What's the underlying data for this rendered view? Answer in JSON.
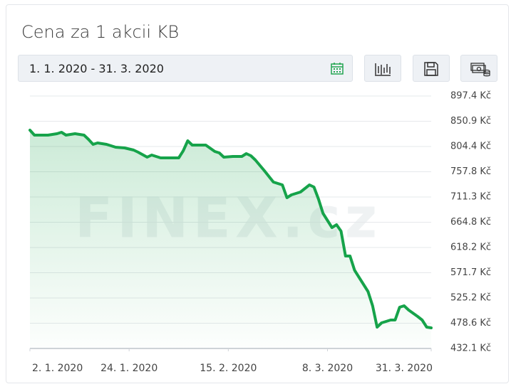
{
  "chart_data": {
    "type": "line",
    "title": "Cena za 1 akcii KB",
    "date_range": "1. 1. 2020 - 31. 3. 2020",
    "watermark": "FINEX.cz",
    "x": [
      "2020-01-02",
      "2020-01-03",
      "2020-01-05",
      "2020-01-06",
      "2020-01-08",
      "2020-01-09",
      "2020-01-10",
      "2020-01-12",
      "2020-01-14",
      "2020-01-15",
      "2020-01-16",
      "2020-01-17",
      "2020-01-19",
      "2020-01-21",
      "2020-01-23",
      "2020-01-25",
      "2020-01-26",
      "2020-01-28",
      "2020-01-29",
      "2020-01-31",
      "2020-02-02",
      "2020-02-04",
      "2020-02-05",
      "2020-02-06",
      "2020-02-07",
      "2020-02-09",
      "2020-02-10",
      "2020-02-12",
      "2020-02-13",
      "2020-02-14",
      "2020-02-16",
      "2020-02-18",
      "2020-02-19",
      "2020-02-20",
      "2020-02-21",
      "2020-02-23",
      "2020-02-25",
      "2020-02-27",
      "2020-02-28",
      "2020-02-29",
      "2020-03-02",
      "2020-03-04",
      "2020-03-05",
      "2020-03-06",
      "2020-03-07",
      "2020-03-09",
      "2020-03-10",
      "2020-03-11",
      "2020-03-12",
      "2020-03-13",
      "2020-03-14",
      "2020-03-16",
      "2020-03-17",
      "2020-03-18",
      "2020-03-19",
      "2020-03-20",
      "2020-03-22",
      "2020-03-23",
      "2020-03-24",
      "2020-03-25",
      "2020-03-26",
      "2020-03-28",
      "2020-03-29",
      "2020-03-30",
      "2020-03-31"
    ],
    "values": [
      834.5,
      825.3,
      825.3,
      825.3,
      827.9,
      830.6,
      825.3,
      827.9,
      825.3,
      817.4,
      808.3,
      810.9,
      808.3,
      803.0,
      801.7,
      797.8,
      793.8,
      784.7,
      788.6,
      783.4,
      783.4,
      783.4,
      796.5,
      814.8,
      807.0,
      807.0,
      807.0,
      795.2,
      792.5,
      784.7,
      786.0,
      786.0,
      791.2,
      787.3,
      779.4,
      759.8,
      738.8,
      733.6,
      710.0,
      715.2,
      720.5,
      733.6,
      729.6,
      707.3,
      681.1,
      654.9,
      660.2,
      648.4,
      602.5,
      602.5,
      576.3,
      550.1,
      537.0,
      510.7,
      471.4,
      479.3,
      484.5,
      484.5,
      508.1,
      510.7,
      502.9,
      491.1,
      484.5,
      471.4,
      470.1
    ],
    "color": "#16a34a",
    "xlim": [
      "2020-01-02",
      "2020-03-31"
    ],
    "xticks": [
      {
        "value": "2020-01-02",
        "label": "2. 1. 2020"
      },
      {
        "value": "2020-01-24",
        "label": "24. 1. 2020"
      },
      {
        "value": "2020-02-15",
        "label": "15. 2. 2020"
      },
      {
        "value": "2020-03-08",
        "label": "8. 3. 2020"
      },
      {
        "value": "2020-03-31",
        "label": "31. 3. 2020"
      }
    ],
    "ylim": [
      432.1,
      897.4
    ],
    "yticks": [
      {
        "value": 432.1,
        "label": "432.1 Kč"
      },
      {
        "value": 478.6,
        "label": "478.6 Kč"
      },
      {
        "value": 525.2,
        "label": "525.2 Kč"
      },
      {
        "value": 571.7,
        "label": "571.7 Kč"
      },
      {
        "value": 618.2,
        "label": "618.2 Kč"
      },
      {
        "value": 664.8,
        "label": "664.8 Kč"
      },
      {
        "value": 711.3,
        "label": "711.3 Kč"
      },
      {
        "value": 757.8,
        "label": "757.8 Kč"
      },
      {
        "value": 804.4,
        "label": "804.4 Kč"
      },
      {
        "value": 850.9,
        "label": "850.9 Kč"
      },
      {
        "value": 897.4,
        "label": "897.4 Kč"
      }
    ],
    "grid": true
  }
}
